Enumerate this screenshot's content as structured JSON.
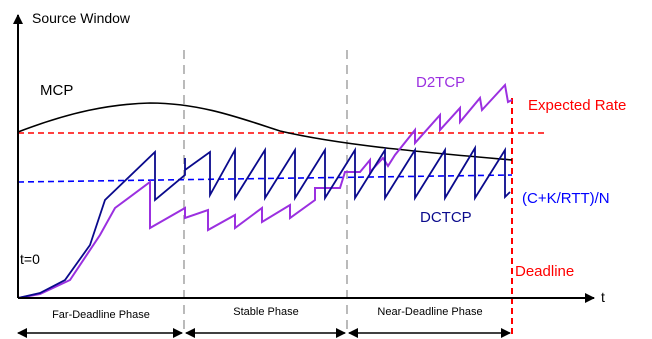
{
  "axes": {
    "y_label": "Source Window",
    "x_label": "t",
    "origin_label": "t=0"
  },
  "curves": {
    "mcp": "MCP",
    "d2tcp": "D2TCP",
    "dctcp": "DCTCP"
  },
  "reference_lines": {
    "expected_rate": "Expected Rate",
    "fair_share": "(C+K/RTT)/N",
    "deadline": "Deadline"
  },
  "phases": [
    {
      "label": "Far-Deadline Phase"
    },
    {
      "label": "Stable Phase"
    },
    {
      "label": "Near-Deadline Phase"
    }
  ],
  "colors": {
    "axis": "#000000",
    "mcp": "#000000",
    "d2tcp": "#9b30e0",
    "dctcp": "#0a0a8c",
    "expected_rate": "#ff0000",
    "fair_share": "#0000ff",
    "deadline": "#ff0000",
    "phase_divider": "#aaaaaa"
  }
}
